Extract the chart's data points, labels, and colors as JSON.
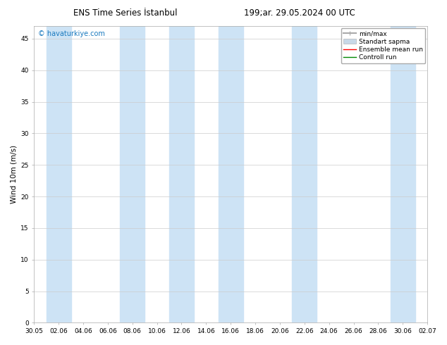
{
  "title_left": "ENS Time Series İstanbul",
  "title_right": "199;ar. 29.05.2024 00 UTC",
  "ylabel": "Wind 10m (m/s)",
  "watermark": "© havaturkiye.com",
  "ylim": [
    0,
    47
  ],
  "yticks": [
    0,
    5,
    10,
    15,
    20,
    25,
    30,
    35,
    40,
    45
  ],
  "xtick_labels": [
    "30.05",
    "02.06",
    "04.06",
    "06.06",
    "08.06",
    "10.06",
    "12.06",
    "14.06",
    "16.06",
    "18.06",
    "20.06",
    "22.06",
    "24.06",
    "26.06",
    "28.06",
    "30.06",
    "02.07"
  ],
  "xtick_positions": [
    0,
    2,
    4,
    6,
    8,
    10,
    12,
    14,
    16,
    18,
    20,
    22,
    24,
    26,
    28,
    30,
    32
  ],
  "shaded_bands": [
    [
      1,
      3
    ],
    [
      7,
      9
    ],
    [
      11,
      13
    ],
    [
      15,
      17
    ],
    [
      21,
      23
    ],
    [
      29,
      31
    ]
  ],
  "shaded_color": "#cde3f5",
  "background_color": "#ffffff",
  "plot_bg_color": "#ffffff",
  "grid_color": "#cccccc",
  "title_color": "#000000",
  "title_fontsize": 8.5,
  "watermark_color": "#1a7abf",
  "watermark_fontsize": 7,
  "tick_fontsize": 6.5,
  "ylabel_fontsize": 7.5,
  "legend_fontsize": 6.5,
  "legend_items": [
    {
      "label": "min/max",
      "color": "#aaaaaa",
      "lw": 1.5
    },
    {
      "label": "Standart sapma",
      "color": "#c8d8e8",
      "lw": 6
    },
    {
      "label": "Ensemble mean run",
      "color": "#ff0000",
      "lw": 1.0
    },
    {
      "label": "Controll run",
      "color": "#008800",
      "lw": 1.0
    }
  ]
}
